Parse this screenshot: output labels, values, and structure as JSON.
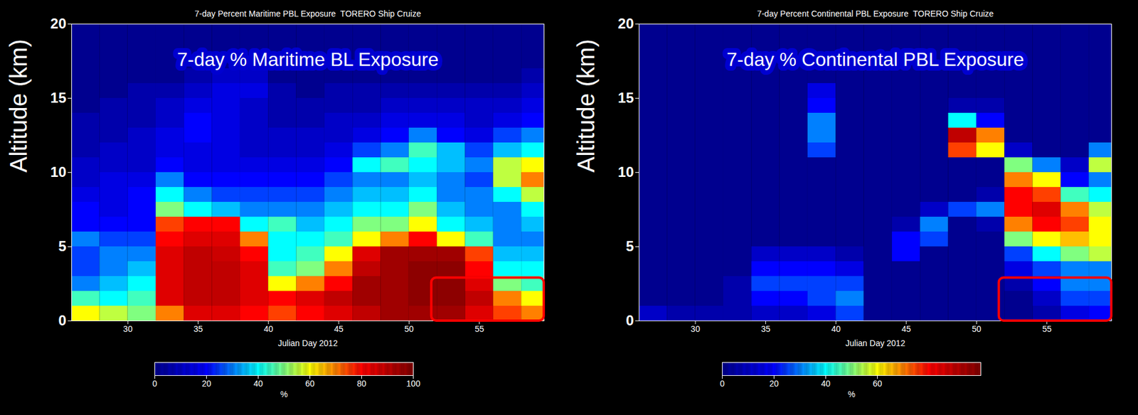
{
  "chart_data": [
    {
      "type": "heatmap",
      "title": "7-day Percent Maritime PBL Exposure  TORERO Ship Cruize",
      "annotation": "7-day % Maritime BL Exposure",
      "x_label": "Julian Day 2012",
      "y_label": "Altitude (km)",
      "xlim": [
        26,
        59.6
      ],
      "xticks": [
        30,
        35,
        40,
        45,
        50,
        55
      ],
      "ylim": [
        0,
        20
      ],
      "yticks": [
        0,
        5,
        10,
        15,
        20
      ],
      "x_bins": [
        26,
        28,
        30,
        32,
        34,
        36,
        38,
        40,
        42,
        44,
        46,
        48,
        50,
        52,
        54,
        56,
        58,
        60
      ],
      "y_bins": [
        0,
        1,
        2,
        3,
        4,
        5,
        6,
        7,
        8,
        9,
        10,
        11,
        12,
        13,
        14,
        15,
        16,
        17,
        18,
        19,
        20
      ],
      "values": [
        [
          60,
          55,
          50,
          70,
          85,
          85,
          80,
          75,
          80,
          85,
          90,
          95,
          95,
          95,
          85,
          75,
          70
        ],
        [
          45,
          40,
          45,
          85,
          90,
          90,
          85,
          80,
          85,
          90,
          95,
          95,
          98,
          98,
          90,
          70,
          60
        ],
        [
          30,
          35,
          40,
          85,
          90,
          90,
          85,
          60,
          70,
          80,
          95,
          95,
          98,
          98,
          85,
          50,
          45
        ],
        [
          25,
          30,
          35,
          85,
          90,
          90,
          85,
          45,
          50,
          70,
          90,
          95,
          98,
          98,
          80,
          40,
          40
        ],
        [
          25,
          30,
          30,
          85,
          90,
          88,
          80,
          40,
          45,
          60,
          85,
          95,
          95,
          95,
          75,
          35,
          35
        ],
        [
          30,
          25,
          25,
          80,
          85,
          85,
          70,
          40,
          40,
          45,
          60,
          70,
          80,
          60,
          45,
          30,
          30
        ],
        [
          20,
          20,
          20,
          75,
          80,
          80,
          40,
          45,
          35,
          40,
          50,
          50,
          60,
          40,
          35,
          30,
          35
        ],
        [
          20,
          15,
          20,
          50,
          40,
          35,
          30,
          30,
          30,
          35,
          40,
          40,
          50,
          35,
          30,
          30,
          40
        ],
        [
          15,
          15,
          20,
          40,
          30,
          25,
          25,
          25,
          25,
          30,
          35,
          35,
          40,
          30,
          30,
          40,
          55
        ],
        [
          10,
          15,
          15,
          30,
          20,
          20,
          20,
          20,
          20,
          25,
          30,
          30,
          35,
          30,
          25,
          55,
          70
        ],
        [
          10,
          10,
          10,
          20,
          15,
          15,
          15,
          15,
          15,
          20,
          40,
          45,
          40,
          35,
          30,
          55,
          60
        ],
        [
          5,
          10,
          10,
          15,
          15,
          15,
          10,
          10,
          10,
          15,
          25,
          30,
          45,
          35,
          25,
          35,
          40
        ],
        [
          5,
          5,
          10,
          15,
          20,
          15,
          10,
          10,
          10,
          10,
          15,
          20,
          30,
          20,
          15,
          25,
          30
        ],
        [
          5,
          5,
          5,
          10,
          20,
          15,
          10,
          5,
          5,
          10,
          10,
          15,
          15,
          15,
          10,
          15,
          20
        ],
        [
          0,
          5,
          5,
          10,
          15,
          15,
          10,
          5,
          5,
          5,
          5,
          10,
          10,
          10,
          10,
          10,
          15
        ],
        [
          0,
          0,
          5,
          5,
          10,
          15,
          15,
          5,
          0,
          5,
          5,
          5,
          5,
          5,
          5,
          5,
          10
        ],
        [
          0,
          0,
          0,
          0,
          5,
          10,
          10,
          0,
          0,
          0,
          0,
          0,
          0,
          0,
          0,
          0,
          5
        ],
        [
          0,
          0,
          0,
          0,
          0,
          0,
          0,
          0,
          0,
          0,
          0,
          0,
          0,
          0,
          0,
          0,
          0
        ],
        [
          0,
          0,
          0,
          0,
          0,
          0,
          0,
          0,
          0,
          0,
          0,
          0,
          0,
          0,
          0,
          0,
          0
        ],
        [
          0,
          0,
          0,
          0,
          0,
          0,
          0,
          0,
          0,
          0,
          0,
          0,
          0,
          0,
          0,
          0,
          0
        ]
      ],
      "colorbar": {
        "range": [
          0,
          100
        ],
        "ticks": [
          0,
          20,
          40,
          60,
          80,
          100
        ],
        "label": "%"
      },
      "highlight": {
        "x": [
          51.6,
          59.6
        ],
        "y": [
          0,
          2.9
        ]
      }
    },
    {
      "type": "heatmap",
      "title": "7-day Percent Continental PBL Exposure  TORERO Ship Cruize",
      "annotation": "7-day % Continental PBL Exposure",
      "x_label": "Julian Day 2012",
      "y_label": "Altitude (km)",
      "xlim": [
        26,
        59.6
      ],
      "xticks": [
        30,
        35,
        40,
        45,
        50,
        55
      ],
      "ylim": [
        0,
        20
      ],
      "yticks": [
        0,
        5,
        10,
        15,
        20
      ],
      "x_bins": [
        26,
        28,
        30,
        32,
        34,
        36,
        38,
        40,
        42,
        44,
        46,
        48,
        50,
        52,
        54,
        56,
        58,
        60
      ],
      "y_bins": [
        0,
        1,
        2,
        3,
        4,
        5,
        6,
        7,
        8,
        9,
        10,
        11,
        12,
        13,
        14,
        15,
        16,
        17,
        18,
        19,
        20
      ],
      "values": [
        [
          10,
          5,
          5,
          5,
          10,
          10,
          15,
          25,
          0,
          0,
          0,
          0,
          0,
          0,
          5,
          15,
          20
        ],
        [
          0,
          0,
          0,
          5,
          20,
          20,
          25,
          30,
          0,
          0,
          0,
          0,
          0,
          0,
          10,
          25,
          25
        ],
        [
          0,
          0,
          0,
          5,
          25,
          25,
          25,
          25,
          0,
          0,
          0,
          0,
          0,
          5,
          20,
          30,
          30
        ],
        [
          0,
          0,
          0,
          0,
          20,
          20,
          20,
          15,
          0,
          0,
          0,
          0,
          0,
          15,
          25,
          30,
          30
        ],
        [
          0,
          0,
          0,
          0,
          10,
          10,
          10,
          5,
          0,
          20,
          0,
          0,
          0,
          25,
          40,
          50,
          55
        ],
        [
          0,
          0,
          0,
          0,
          0,
          0,
          0,
          0,
          0,
          20,
          25,
          0,
          0,
          50,
          60,
          65,
          60
        ],
        [
          0,
          0,
          0,
          0,
          0,
          0,
          0,
          0,
          0,
          5,
          30,
          0,
          5,
          70,
          80,
          75,
          60
        ],
        [
          0,
          0,
          0,
          0,
          0,
          0,
          0,
          0,
          0,
          0,
          10,
          25,
          30,
          80,
          85,
          70,
          55
        ],
        [
          0,
          0,
          0,
          0,
          0,
          0,
          0,
          0,
          0,
          0,
          0,
          0,
          5,
          80,
          75,
          45,
          40
        ],
        [
          0,
          0,
          0,
          0,
          0,
          0,
          0,
          0,
          0,
          0,
          0,
          0,
          0,
          70,
          60,
          20,
          30
        ],
        [
          0,
          0,
          0,
          0,
          0,
          0,
          0,
          0,
          0,
          0,
          0,
          0,
          0,
          50,
          30,
          10,
          55
        ],
        [
          0,
          0,
          0,
          0,
          0,
          0,
          25,
          0,
          0,
          0,
          0,
          75,
          60,
          10,
          0,
          0,
          30
        ],
        [
          0,
          0,
          0,
          0,
          0,
          0,
          30,
          0,
          0,
          0,
          0,
          90,
          70,
          0,
          0,
          0,
          0
        ],
        [
          0,
          0,
          0,
          0,
          0,
          0,
          30,
          0,
          0,
          0,
          0,
          40,
          20,
          0,
          0,
          0,
          0
        ],
        [
          0,
          0,
          0,
          0,
          0,
          0,
          20,
          0,
          0,
          0,
          0,
          5,
          5,
          0,
          0,
          0,
          0
        ],
        [
          0,
          0,
          0,
          0,
          0,
          0,
          15,
          0,
          0,
          0,
          0,
          0,
          0,
          0,
          0,
          0,
          0
        ],
        [
          0,
          0,
          0,
          0,
          0,
          0,
          0,
          0,
          0,
          0,
          0,
          0,
          0,
          0,
          0,
          0,
          0
        ],
        [
          0,
          0,
          0,
          0,
          0,
          0,
          0,
          0,
          0,
          0,
          0,
          0,
          0,
          0,
          0,
          0,
          0
        ],
        [
          0,
          0,
          0,
          0,
          0,
          0,
          0,
          0,
          0,
          0,
          0,
          0,
          0,
          0,
          0,
          0,
          0
        ],
        [
          0,
          0,
          0,
          0,
          0,
          0,
          0,
          0,
          0,
          0,
          0,
          0,
          0,
          0,
          0,
          0,
          0
        ]
      ],
      "colorbar": {
        "range": [
          0,
          100
        ],
        "ticks": [
          0,
          20,
          40,
          60
        ],
        "label": "%"
      },
      "highlight": {
        "x": [
          51.6,
          59.6
        ],
        "y": [
          0,
          2.9
        ]
      }
    }
  ]
}
